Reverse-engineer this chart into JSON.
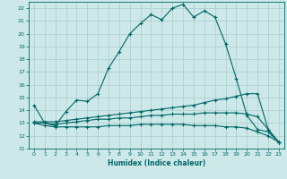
{
  "xlabel": "Humidex (Indice chaleur)",
  "bg_color": "#cce8e8",
  "line_color": "#006666",
  "grid_color": "#aacccc",
  "xlim": [
    -0.5,
    23.5
  ],
  "ylim": [
    11,
    22.5
  ],
  "yticks": [
    11,
    12,
    13,
    14,
    15,
    16,
    17,
    18,
    19,
    20,
    21,
    22
  ],
  "xticks": [
    0,
    1,
    2,
    3,
    4,
    5,
    6,
    7,
    8,
    9,
    10,
    11,
    12,
    13,
    14,
    15,
    16,
    17,
    18,
    19,
    20,
    21,
    22,
    23
  ],
  "series1_x": [
    0,
    1,
    2,
    3,
    4,
    5,
    6,
    7,
    8,
    9,
    10,
    11,
    12,
    13,
    14,
    15,
    16,
    17,
    18,
    19,
    20,
    21,
    22,
    23
  ],
  "series1_y": [
    14.4,
    13.0,
    12.8,
    13.9,
    14.8,
    14.7,
    15.3,
    17.3,
    18.6,
    20.0,
    20.8,
    21.5,
    21.1,
    22.0,
    22.3,
    21.3,
    21.8,
    21.3,
    19.2,
    16.5,
    13.6,
    12.5,
    12.3,
    11.5
  ],
  "series2_x": [
    0,
    1,
    2,
    3,
    4,
    5,
    6,
    7,
    8,
    9,
    10,
    11,
    12,
    13,
    14,
    15,
    16,
    17,
    18,
    19,
    20,
    21,
    22,
    23
  ],
  "series2_y": [
    13.1,
    13.1,
    13.1,
    13.2,
    13.3,
    13.4,
    13.5,
    13.6,
    13.7,
    13.8,
    13.9,
    14.0,
    14.1,
    14.2,
    14.3,
    14.4,
    14.6,
    14.8,
    14.9,
    15.1,
    15.3,
    15.3,
    12.5,
    11.5
  ],
  "series3_x": [
    0,
    1,
    2,
    3,
    4,
    5,
    6,
    7,
    8,
    9,
    10,
    11,
    12,
    13,
    14,
    15,
    16,
    17,
    18,
    19,
    20,
    21,
    22,
    23
  ],
  "series3_y": [
    13.0,
    13.0,
    12.9,
    13.0,
    13.1,
    13.2,
    13.3,
    13.3,
    13.4,
    13.4,
    13.5,
    13.6,
    13.6,
    13.7,
    13.7,
    13.7,
    13.8,
    13.8,
    13.8,
    13.8,
    13.7,
    13.5,
    12.5,
    11.5
  ],
  "series4_x": [
    0,
    1,
    2,
    3,
    4,
    5,
    6,
    7,
    8,
    9,
    10,
    11,
    12,
    13,
    14,
    15,
    16,
    17,
    18,
    19,
    20,
    21,
    22,
    23
  ],
  "series4_y": [
    13.0,
    12.8,
    12.7,
    12.7,
    12.7,
    12.7,
    12.7,
    12.8,
    12.8,
    12.8,
    12.9,
    12.9,
    12.9,
    12.9,
    12.9,
    12.8,
    12.8,
    12.8,
    12.7,
    12.7,
    12.6,
    12.3,
    12.0,
    11.5
  ]
}
